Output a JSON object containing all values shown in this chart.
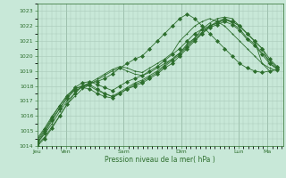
{
  "title": "",
  "xlabel": "Pression niveau de la mer( hPa )",
  "ylabel": "",
  "ylim": [
    1014,
    1023.5
  ],
  "background_color": "#c8e8d8",
  "grid_color": "#a8c8b8",
  "line_color": "#2d6e2d",
  "days": [
    "Jeu",
    "Ven",
    "Sam",
    "Dim",
    "Lun",
    "Ma"
  ],
  "day_positions": [
    0,
    24,
    72,
    120,
    168,
    192
  ],
  "xlim": [
    0,
    205
  ],
  "series": [
    [
      1014.0,
      1014.5,
      1015.2,
      1016.0,
      1016.8,
      1017.5,
      1018.0,
      1018.2,
      1018.3,
      1018.5,
      1018.8,
      1019.2,
      1019.5,
      1019.8,
      1020.0,
      1020.5,
      1021.0,
      1021.5,
      1022.0,
      1022.5,
      1022.8,
      1022.5,
      1022.0,
      1021.5,
      1021.0,
      1020.5,
      1020.0,
      1019.5,
      1019.2,
      1019.0,
      1018.9,
      1019.0,
      1019.1
    ],
    [
      1014.2,
      1014.8,
      1015.5,
      1016.3,
      1017.0,
      1017.5,
      1018.0,
      1018.2,
      1018.5,
      1018.8,
      1019.1,
      1019.3,
      1019.2,
      1019.0,
      1018.9,
      1019.2,
      1019.5,
      1019.8,
      1020.2,
      1021.0,
      1021.5,
      1022.0,
      1022.3,
      1022.5,
      1022.3,
      1022.0,
      1021.5,
      1021.0,
      1020.5,
      1020.0,
      1019.5,
      1019.2,
      1019.0
    ],
    [
      1014.3,
      1015.0,
      1015.8,
      1016.5,
      1017.2,
      1017.8,
      1018.0,
      1018.1,
      1017.8,
      1017.5,
      1017.3,
      1017.5,
      1017.8,
      1018.0,
      1018.2,
      1018.5,
      1018.8,
      1019.2,
      1019.5,
      1020.0,
      1020.5,
      1021.0,
      1021.5,
      1022.0,
      1022.3,
      1022.5,
      1022.3,
      1022.0,
      1021.5,
      1021.0,
      1020.5,
      1019.5,
      1019.2
    ],
    [
      1014.1,
      1014.6,
      1015.3,
      1016.0,
      1016.8,
      1017.3,
      1017.8,
      1018.1,
      1018.4,
      1018.7,
      1019.0,
      1019.2,
      1019.0,
      1018.8,
      1018.7,
      1018.9,
      1019.2,
      1019.5,
      1019.8,
      1020.2,
      1020.8,
      1021.2,
      1021.8,
      1022.2,
      1022.5,
      1022.6,
      1022.5,
      1022.0,
      1021.5,
      1021.0,
      1019.5,
      1019.0,
      1019.1
    ],
    [
      1014.4,
      1015.1,
      1015.9,
      1016.7,
      1017.3,
      1017.9,
      1018.2,
      1018.3,
      1018.1,
      1017.9,
      1017.7,
      1018.0,
      1018.3,
      1018.5,
      1018.7,
      1019.0,
      1019.3,
      1019.7,
      1020.1,
      1020.5,
      1021.0,
      1021.5,
      1021.8,
      1022.0,
      1022.2,
      1022.4,
      1022.3,
      1022.0,
      1021.5,
      1021.0,
      1020.5,
      1019.8,
      1019.3
    ],
    [
      1014.5,
      1015.2,
      1016.0,
      1016.7,
      1017.4,
      1017.8,
      1018.0,
      1018.0,
      1017.7,
      1017.5,
      1017.3,
      1017.6,
      1017.9,
      1018.2,
      1018.4,
      1018.7,
      1019.0,
      1019.4,
      1019.8,
      1020.2,
      1020.7,
      1021.2,
      1021.6,
      1022.0,
      1022.2,
      1022.5,
      1022.2,
      1021.8,
      1021.2,
      1020.8,
      1020.2,
      1019.7,
      1019.2
    ],
    [
      1014.2,
      1014.9,
      1015.7,
      1016.5,
      1017.2,
      1017.7,
      1017.9,
      1017.8,
      1017.5,
      1017.3,
      1017.2,
      1017.5,
      1017.8,
      1018.1,
      1018.3,
      1018.6,
      1018.9,
      1019.3,
      1019.7,
      1020.1,
      1020.6,
      1021.1,
      1021.5,
      1021.9,
      1022.1,
      1022.3,
      1022.1,
      1021.7,
      1021.1,
      1020.7,
      1020.1,
      1019.5,
      1019.1
    ]
  ]
}
